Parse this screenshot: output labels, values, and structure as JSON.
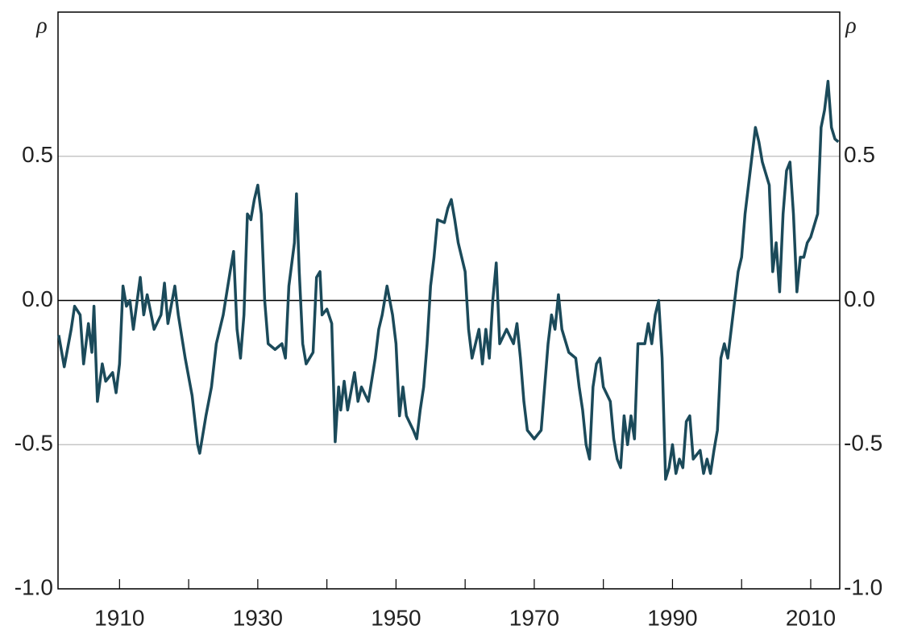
{
  "chart_data": {
    "type": "line",
    "ylabel": "ρ",
    "y2label": "ρ",
    "x": [
      1901.2,
      1902,
      1903,
      1903.5,
      1904.3,
      1904.8,
      1905.5,
      1906,
      1906.3,
      1906.8,
      1907.5,
      1908,
      1909,
      1909.5,
      1910,
      1910.5,
      1911,
      1911.5,
      1912,
      1913,
      1913.5,
      1914,
      1915,
      1916,
      1916.5,
      1917,
      1918,
      1918.5,
      1919.5,
      1920.5,
      1921.3,
      1921.6,
      1922.5,
      1923.3,
      1924,
      1925,
      1926,
      1926.5,
      1927,
      1927.5,
      1928,
      1928.5,
      1929,
      1929.5,
      1930,
      1930.5,
      1931,
      1931.5,
      1932.5,
      1933.5,
      1934,
      1934.5,
      1935.3,
      1935.6,
      1936,
      1936.5,
      1937,
      1938,
      1938.5,
      1939,
      1939.3,
      1940,
      1940.7,
      1941.2,
      1941.7,
      1942,
      1942.5,
      1943,
      1944,
      1944.5,
      1945,
      1946,
      1947,
      1947.5,
      1948,
      1948.7,
      1949.5,
      1950,
      1950.5,
      1951,
      1951.5,
      1952.5,
      1953,
      1953.5,
      1954,
      1954.5,
      1955,
      1955.5,
      1956,
      1957,
      1957.5,
      1958,
      1958.5,
      1959,
      1960,
      1960.5,
      1961,
      1962,
      1962.5,
      1963,
      1963.5,
      1964,
      1964.5,
      1965,
      1966,
      1967,
      1967.5,
      1968,
      1968.5,
      1969,
      1970,
      1971,
      1971.5,
      1972,
      1972.5,
      1973,
      1973.5,
      1974,
      1975,
      1976,
      1976.5,
      1977,
      1977.5,
      1978,
      1978.5,
      1979,
      1979.5,
      1980,
      1981,
      1981.5,
      1982,
      1982.5,
      1983,
      1983.5,
      1984,
      1984.5,
      1985,
      1986,
      1986.5,
      1987,
      1987.5,
      1988,
      1988.5,
      1989,
      1989.5,
      1990,
      1990.5,
      1991,
      1991.5,
      1992,
      1992.5,
      1993,
      1994,
      1994.5,
      1995,
      1995.5,
      1996,
      1996.5,
      1997,
      1997.5,
      1998,
      1998.5,
      1999,
      1999.5,
      2000,
      2000.5,
      2001,
      2001.5,
      2002,
      2002.5,
      2003,
      2004,
      2004.5,
      2005,
      2005.5,
      2006,
      2006.5,
      2007,
      2007.5,
      2008,
      2008.5,
      2009,
      2009.5,
      2010,
      2011,
      2011.5,
      2012,
      2012.5,
      2013,
      2013.5,
      2014
    ],
    "values": [
      -0.12,
      -0.23,
      -0.1,
      -0.02,
      -0.05,
      -0.22,
      -0.08,
      -0.18,
      -0.02,
      -0.35,
      -0.22,
      -0.28,
      -0.25,
      -0.32,
      -0.22,
      0.05,
      -0.02,
      0.0,
      -0.1,
      0.08,
      -0.05,
      0.02,
      -0.1,
      -0.05,
      0.06,
      -0.08,
      0.05,
      -0.05,
      -0.2,
      -0.33,
      -0.5,
      -0.53,
      -0.4,
      -0.3,
      -0.15,
      -0.05,
      0.1,
      0.17,
      -0.1,
      -0.2,
      -0.05,
      0.3,
      0.28,
      0.35,
      0.4,
      0.3,
      0.0,
      -0.15,
      -0.17,
      -0.15,
      -0.2,
      0.05,
      0.2,
      0.37,
      0.1,
      -0.15,
      -0.22,
      -0.18,
      0.08,
      0.1,
      -0.05,
      -0.03,
      -0.08,
      -0.49,
      -0.3,
      -0.38,
      -0.28,
      -0.38,
      -0.25,
      -0.35,
      -0.3,
      -0.35,
      -0.2,
      -0.1,
      -0.05,
      0.05,
      -0.05,
      -0.15,
      -0.4,
      -0.3,
      -0.4,
      -0.45,
      -0.48,
      -0.38,
      -0.3,
      -0.15,
      0.05,
      0.15,
      0.28,
      0.27,
      0.32,
      0.35,
      0.28,
      0.2,
      0.1,
      -0.1,
      -0.2,
      -0.1,
      -0.22,
      -0.1,
      -0.2,
      0.0,
      0.13,
      -0.15,
      -0.1,
      -0.15,
      -0.08,
      -0.2,
      -0.35,
      -0.45,
      -0.48,
      -0.45,
      -0.3,
      -0.15,
      -0.05,
      -0.1,
      0.02,
      -0.1,
      -0.18,
      -0.2,
      -0.3,
      -0.38,
      -0.5,
      -0.55,
      -0.3,
      -0.22,
      -0.2,
      -0.3,
      -0.35,
      -0.48,
      -0.55,
      -0.58,
      -0.4,
      -0.5,
      -0.4,
      -0.48,
      -0.15,
      -0.15,
      -0.08,
      -0.15,
      -0.05,
      0.0,
      -0.2,
      -0.62,
      -0.58,
      -0.5,
      -0.6,
      -0.55,
      -0.58,
      -0.42,
      -0.4,
      -0.55,
      -0.52,
      -0.6,
      -0.55,
      -0.6,
      -0.52,
      -0.45,
      -0.2,
      -0.15,
      -0.2,
      -0.1,
      0.0,
      0.1,
      0.15,
      0.3,
      0.4,
      0.5,
      0.6,
      0.55,
      0.48,
      0.4,
      0.1,
      0.2,
      0.03,
      0.3,
      0.45,
      0.48,
      0.3,
      0.03,
      0.15,
      0.15,
      0.2,
      0.22,
      0.3,
      0.6,
      0.66,
      0.76,
      0.6,
      0.56,
      0.55
    ],
    "color": "#1b4a5a",
    "xlim": [
      1901.1,
      2014.2
    ],
    "xticks": [
      1910,
      1930,
      1950,
      1970,
      1990,
      2010
    ],
    "xminorticks": [
      1920,
      1940,
      1960,
      1980,
      2000
    ],
    "ylim": [
      -1,
      1
    ],
    "yticks": [
      {
        "value": -1,
        "label": "-1.0"
      },
      -0.5,
      {
        "value": 0,
        "label": "0.0"
      },
      0.5
    ],
    "y2lim": [
      -1,
      1
    ],
    "y2ticks": [
      {
        "value": -1,
        "label": "-1.0"
      },
      -0.5,
      {
        "value": 0,
        "label": "0.0"
      },
      0.5
    ],
    "grid": true,
    "zero_line": true
  }
}
